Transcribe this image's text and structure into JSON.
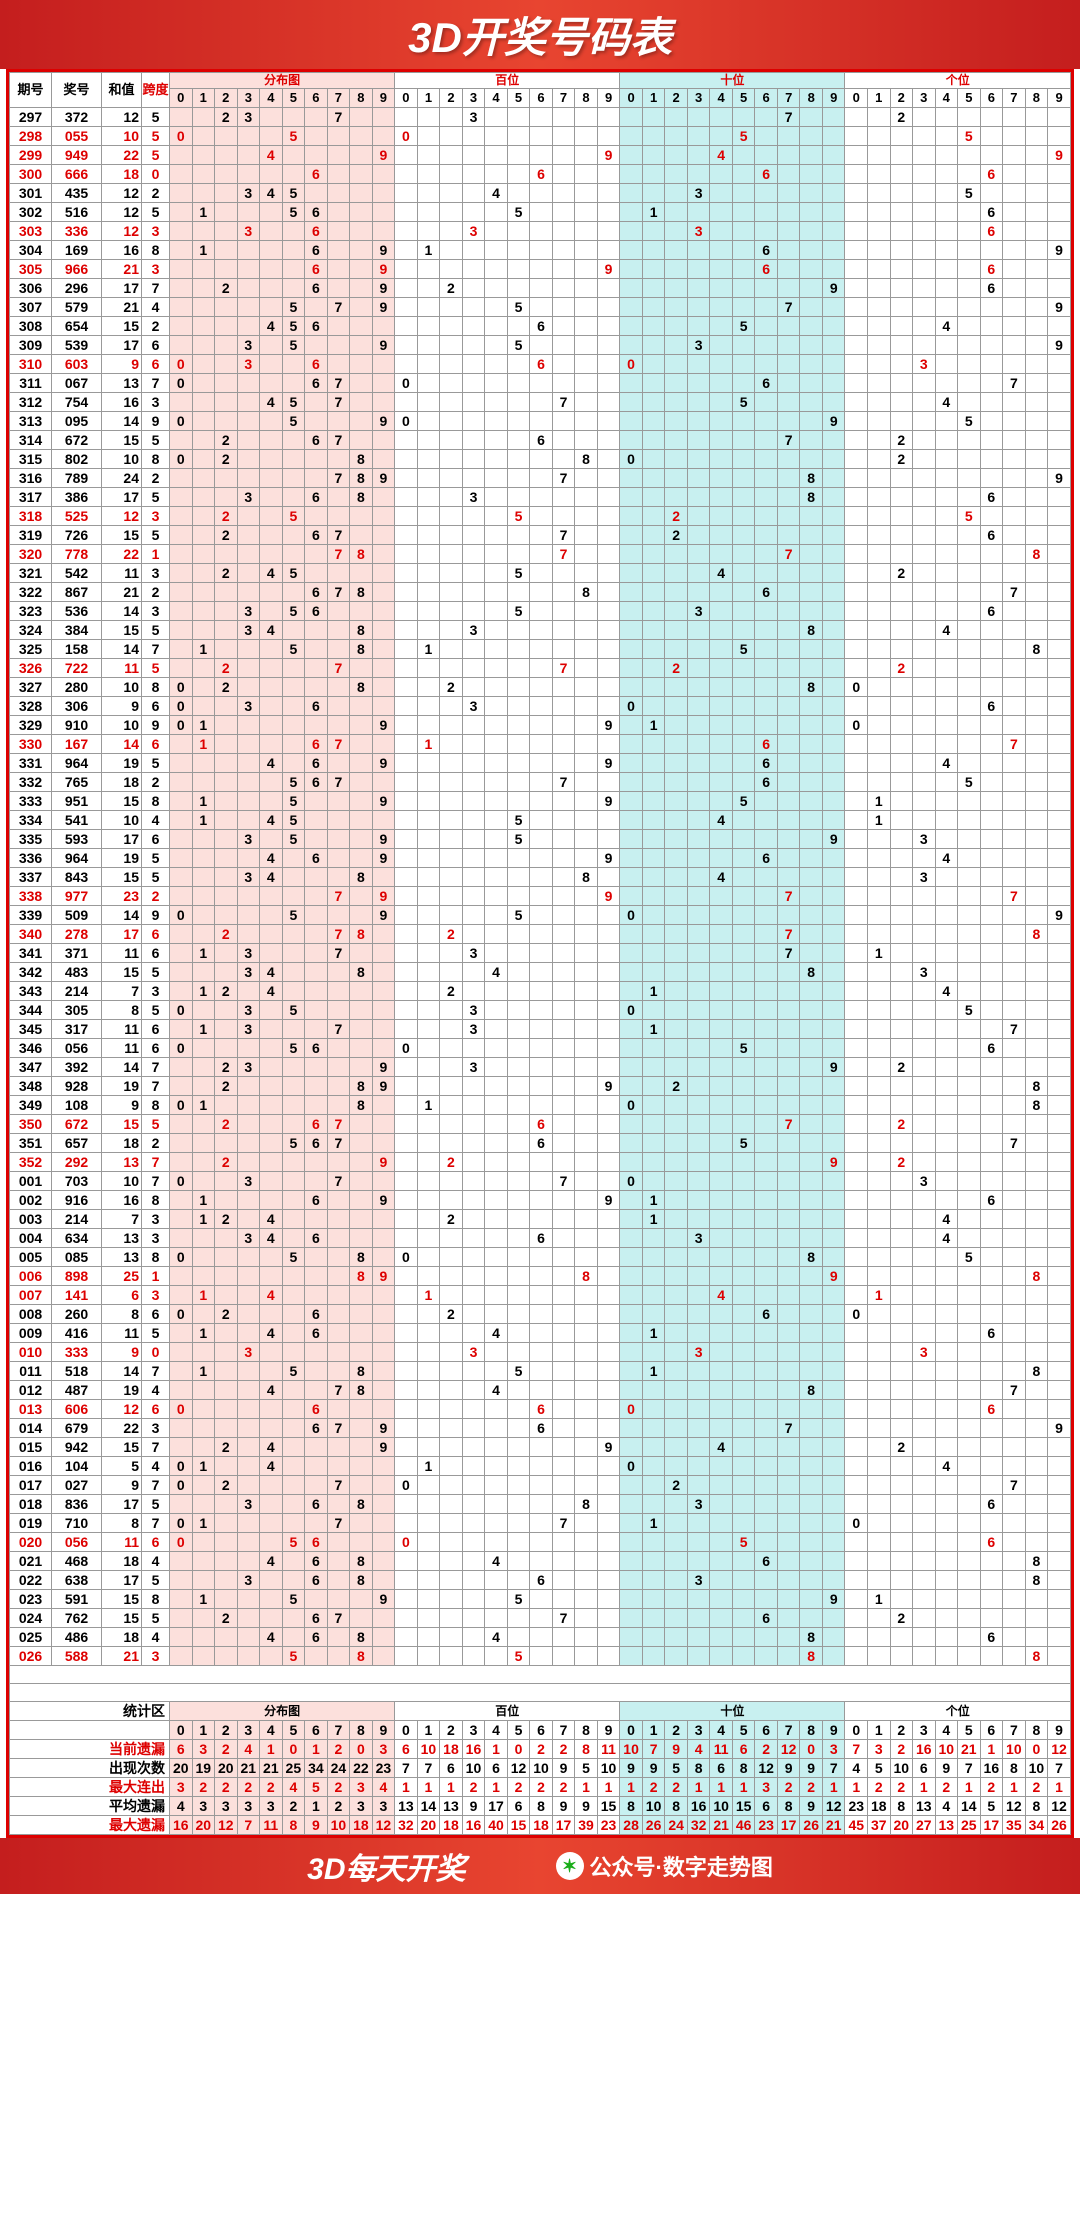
{
  "title": "3D开奖号码表",
  "footer_left": "3D每天开奖",
  "footer_right": "公众号·数字走势图",
  "headers": {
    "issue": "期号",
    "number": "奖号",
    "sum": "和值",
    "span": "跨度",
    "dist": "分布图",
    "bai": "百位",
    "shi": "十位",
    "ge": "个位",
    "digits": [
      "0",
      "1",
      "2",
      "3",
      "4",
      "5",
      "6",
      "7",
      "8",
      "9"
    ]
  },
  "bai_col_colors": [
    "#fff",
    "#fff",
    "#fff",
    "#fff",
    "#fff",
    "#fff",
    "#fff",
    "#fff",
    "#fff",
    "#fff"
  ],
  "shi_col_colors": [
    "#c8f0f0",
    "#c8f0f0",
    "#c8f0f0",
    "#c8f0f0",
    "#c8f0f0",
    "#c8f0f0",
    "#c8f0f0",
    "#c8f0f0",
    "#c8f0f0",
    "#c8f0f0"
  ],
  "ge_col_colors": [
    "#fff",
    "#fff",
    "#fff",
    "#fff",
    "#fff",
    "#fff",
    "#fff",
    "#fff",
    "#fff",
    "#fff"
  ],
  "dist_bg": "#fce0dc",
  "line_colors": {
    "bai": "#d00",
    "shi": "#0066dd",
    "ge": "#d00"
  },
  "rows": [
    {
      "i": "297",
      "n": "372",
      "s": 12,
      "p": 5,
      "d": [
        3,
        7,
        2
      ]
    },
    {
      "i": "298",
      "n": "055",
      "s": 10,
      "p": 5,
      "d": [
        0,
        5,
        5
      ],
      "red": true
    },
    {
      "i": "299",
      "n": "949",
      "s": 22,
      "p": 5,
      "d": [
        9,
        4,
        9
      ],
      "red": true
    },
    {
      "i": "300",
      "n": "666",
      "s": 18,
      "p": 0,
      "d": [
        6,
        6,
        6
      ],
      "red": true,
      "blue": true
    },
    {
      "i": "301",
      "n": "435",
      "s": 12,
      "p": 2,
      "d": [
        4,
        3,
        5
      ]
    },
    {
      "i": "302",
      "n": "516",
      "s": 12,
      "p": 5,
      "d": [
        5,
        1,
        6
      ]
    },
    {
      "i": "303",
      "n": "336",
      "s": 12,
      "p": 3,
      "d": [
        3,
        3,
        6
      ],
      "red": true
    },
    {
      "i": "304",
      "n": "169",
      "s": 16,
      "p": 8,
      "d": [
        1,
        6,
        9
      ]
    },
    {
      "i": "305",
      "n": "966",
      "s": 21,
      "p": 3,
      "d": [
        9,
        6,
        6
      ],
      "red": true
    },
    {
      "i": "306",
      "n": "296",
      "s": 17,
      "p": 7,
      "d": [
        2,
        9,
        6
      ]
    },
    {
      "i": "307",
      "n": "579",
      "s": 21,
      "p": 4,
      "d": [
        5,
        7,
        9
      ]
    },
    {
      "i": "308",
      "n": "654",
      "s": 15,
      "p": 2,
      "d": [
        6,
        5,
        4
      ]
    },
    {
      "i": "309",
      "n": "539",
      "s": 17,
      "p": 6,
      "d": [
        5,
        3,
        9
      ]
    },
    {
      "i": "310",
      "n": "603",
      "s": 9,
      "p": 6,
      "d": [
        6,
        0,
        3
      ],
      "red": true
    },
    {
      "i": "311",
      "n": "067",
      "s": 13,
      "p": 7,
      "d": [
        0,
        6,
        7
      ]
    },
    {
      "i": "312",
      "n": "754",
      "s": 16,
      "p": 3,
      "d": [
        7,
        5,
        4
      ]
    },
    {
      "i": "313",
      "n": "095",
      "s": 14,
      "p": 9,
      "d": [
        0,
        9,
        5
      ]
    },
    {
      "i": "314",
      "n": "672",
      "s": 15,
      "p": 5,
      "d": [
        6,
        7,
        2
      ]
    },
    {
      "i": "315",
      "n": "802",
      "s": 10,
      "p": 8,
      "d": [
        8,
        0,
        2
      ]
    },
    {
      "i": "316",
      "n": "789",
      "s": 24,
      "p": 2,
      "d": [
        7,
        8,
        9
      ]
    },
    {
      "i": "317",
      "n": "386",
      "s": 17,
      "p": 5,
      "d": [
        3,
        8,
        6
      ]
    },
    {
      "i": "318",
      "n": "525",
      "s": 12,
      "p": 3,
      "d": [
        5,
        2,
        5
      ],
      "red": true
    },
    {
      "i": "319",
      "n": "726",
      "s": 15,
      "p": 5,
      "d": [
        7,
        2,
        6
      ]
    },
    {
      "i": "320",
      "n": "778",
      "s": 22,
      "p": 1,
      "d": [
        7,
        7,
        8
      ],
      "red": true
    },
    {
      "i": "321",
      "n": "542",
      "s": 11,
      "p": 3,
      "d": [
        5,
        4,
        2
      ]
    },
    {
      "i": "322",
      "n": "867",
      "s": 21,
      "p": 2,
      "d": [
        8,
        6,
        7
      ]
    },
    {
      "i": "323",
      "n": "536",
      "s": 14,
      "p": 3,
      "d": [
        5,
        3,
        6
      ]
    },
    {
      "i": "324",
      "n": "384",
      "s": 15,
      "p": 5,
      "d": [
        3,
        8,
        4
      ]
    },
    {
      "i": "325",
      "n": "158",
      "s": 14,
      "p": 7,
      "d": [
        1,
        5,
        8
      ]
    },
    {
      "i": "326",
      "n": "722",
      "s": 11,
      "p": 5,
      "d": [
        7,
        2,
        2
      ],
      "red": true
    },
    {
      "i": "327",
      "n": "280",
      "s": 10,
      "p": 8,
      "d": [
        2,
        8,
        0
      ]
    },
    {
      "i": "328",
      "n": "306",
      "s": 9,
      "p": 6,
      "d": [
        3,
        0,
        6
      ]
    },
    {
      "i": "329",
      "n": "910",
      "s": 10,
      "p": 9,
      "d": [
        9,
        1,
        0
      ]
    },
    {
      "i": "330",
      "n": "167",
      "s": 14,
      "p": 6,
      "d": [
        1,
        6,
        7
      ],
      "red": true
    },
    {
      "i": "331",
      "n": "964",
      "s": 19,
      "p": 5,
      "d": [
        9,
        6,
        4
      ]
    },
    {
      "i": "332",
      "n": "765",
      "s": 18,
      "p": 2,
      "d": [
        7,
        6,
        5
      ]
    },
    {
      "i": "333",
      "n": "951",
      "s": 15,
      "p": 8,
      "d": [
        9,
        5,
        1
      ]
    },
    {
      "i": "334",
      "n": "541",
      "s": 10,
      "p": 4,
      "d": [
        5,
        4,
        1
      ]
    },
    {
      "i": "335",
      "n": "593",
      "s": 17,
      "p": 6,
      "d": [
        5,
        9,
        3
      ]
    },
    {
      "i": "336",
      "n": "964",
      "s": 19,
      "p": 5,
      "d": [
        9,
        6,
        4
      ]
    },
    {
      "i": "337",
      "n": "843",
      "s": 15,
      "p": 5,
      "d": [
        8,
        4,
        3
      ]
    },
    {
      "i": "338",
      "n": "977",
      "s": 23,
      "p": 2,
      "d": [
        9,
        7,
        7
      ],
      "red": true
    },
    {
      "i": "339",
      "n": "509",
      "s": 14,
      "p": 9,
      "d": [
        5,
        0,
        9
      ]
    },
    {
      "i": "340",
      "n": "278",
      "s": 17,
      "p": 6,
      "d": [
        2,
        7,
        8
      ],
      "red": true
    },
    {
      "i": "341",
      "n": "371",
      "s": 11,
      "p": 6,
      "d": [
        3,
        7,
        1
      ]
    },
    {
      "i": "342",
      "n": "483",
      "s": 15,
      "p": 5,
      "d": [
        4,
        8,
        3
      ]
    },
    {
      "i": "343",
      "n": "214",
      "s": 7,
      "p": 3,
      "d": [
        2,
        1,
        4
      ]
    },
    {
      "i": "344",
      "n": "305",
      "s": 8,
      "p": 5,
      "d": [
        3,
        0,
        5
      ]
    },
    {
      "i": "345",
      "n": "317",
      "s": 11,
      "p": 6,
      "d": [
        3,
        1,
        7
      ]
    },
    {
      "i": "346",
      "n": "056",
      "s": 11,
      "p": 6,
      "d": [
        0,
        5,
        6
      ]
    },
    {
      "i": "347",
      "n": "392",
      "s": 14,
      "p": 7,
      "d": [
        3,
        9,
        2
      ]
    },
    {
      "i": "348",
      "n": "928",
      "s": 19,
      "p": 7,
      "d": [
        9,
        2,
        8
      ]
    },
    {
      "i": "349",
      "n": "108",
      "s": 9,
      "p": 8,
      "d": [
        1,
        0,
        8
      ]
    },
    {
      "i": "350",
      "n": "672",
      "s": 15,
      "p": 5,
      "d": [
        6,
        7,
        2
      ],
      "red": true
    },
    {
      "i": "351",
      "n": "657",
      "s": 18,
      "p": 2,
      "d": [
        6,
        5,
        7
      ]
    },
    {
      "i": "352",
      "n": "292",
      "s": 13,
      "p": 7,
      "d": [
        2,
        9,
        2
      ],
      "red": true
    },
    {
      "i": "001",
      "n": "703",
      "s": 10,
      "p": 7,
      "d": [
        7,
        0,
        3
      ]
    },
    {
      "i": "002",
      "n": "916",
      "s": 16,
      "p": 8,
      "d": [
        9,
        1,
        6
      ]
    },
    {
      "i": "003",
      "n": "214",
      "s": 7,
      "p": 3,
      "d": [
        2,
        1,
        4
      ]
    },
    {
      "i": "004",
      "n": "634",
      "s": 13,
      "p": 3,
      "d": [
        6,
        3,
        4
      ]
    },
    {
      "i": "005",
      "n": "085",
      "s": 13,
      "p": 8,
      "d": [
        0,
        8,
        5
      ]
    },
    {
      "i": "006",
      "n": "898",
      "s": 25,
      "p": 1,
      "d": [
        8,
        9,
        8
      ],
      "red": true
    },
    {
      "i": "007",
      "n": "141",
      "s": 6,
      "p": 3,
      "d": [
        1,
        4,
        1
      ],
      "red": true
    },
    {
      "i": "008",
      "n": "260",
      "s": 8,
      "p": 6,
      "d": [
        2,
        6,
        0
      ]
    },
    {
      "i": "009",
      "n": "416",
      "s": 11,
      "p": 5,
      "d": [
        4,
        1,
        6
      ]
    },
    {
      "i": "010",
      "n": "333",
      "s": 9,
      "p": 0,
      "d": [
        3,
        3,
        3
      ],
      "red": true,
      "blue": true
    },
    {
      "i": "011",
      "n": "518",
      "s": 14,
      "p": 7,
      "d": [
        5,
        1,
        8
      ]
    },
    {
      "i": "012",
      "n": "487",
      "s": 19,
      "p": 4,
      "d": [
        4,
        8,
        7
      ]
    },
    {
      "i": "013",
      "n": "606",
      "s": 12,
      "p": 6,
      "d": [
        6,
        0,
        6
      ],
      "red": true
    },
    {
      "i": "014",
      "n": "679",
      "s": 22,
      "p": 3,
      "d": [
        6,
        7,
        9
      ]
    },
    {
      "i": "015",
      "n": "942",
      "s": 15,
      "p": 7,
      "d": [
        9,
        4,
        2
      ]
    },
    {
      "i": "016",
      "n": "104",
      "s": 5,
      "p": 4,
      "d": [
        1,
        0,
        4
      ]
    },
    {
      "i": "017",
      "n": "027",
      "s": 9,
      "p": 7,
      "d": [
        0,
        2,
        7
      ]
    },
    {
      "i": "018",
      "n": "836",
      "s": 17,
      "p": 5,
      "d": [
        8,
        3,
        6
      ]
    },
    {
      "i": "019",
      "n": "710",
      "s": 8,
      "p": 7,
      "d": [
        7,
        1,
        0
      ]
    },
    {
      "i": "020",
      "n": "056",
      "s": 11,
      "p": 6,
      "d": [
        0,
        5,
        6
      ],
      "red": true
    },
    {
      "i": "021",
      "n": "468",
      "s": 18,
      "p": 4,
      "d": [
        4,
        6,
        8
      ]
    },
    {
      "i": "022",
      "n": "638",
      "s": 17,
      "p": 5,
      "d": [
        6,
        3,
        8
      ]
    },
    {
      "i": "023",
      "n": "591",
      "s": 15,
      "p": 8,
      "d": [
        5,
        9,
        1
      ]
    },
    {
      "i": "024",
      "n": "762",
      "s": 15,
      "p": 5,
      "d": [
        7,
        6,
        2
      ]
    },
    {
      "i": "025",
      "n": "486",
      "s": 18,
      "p": 4,
      "d": [
        4,
        8,
        6
      ]
    },
    {
      "i": "026",
      "n": "588",
      "s": 21,
      "p": 3,
      "d": [
        5,
        8,
        8
      ],
      "red": true
    }
  ],
  "empty_rows": 2,
  "stats_label": "统计区",
  "stats": [
    {
      "lbl": "当前遗漏",
      "cls": "red",
      "dist": [
        6,
        3,
        2,
        4,
        1,
        0,
        1,
        2,
        0,
        3
      ],
      "bai": [
        6,
        10,
        18,
        16,
        1,
        0,
        2,
        2,
        8,
        11
      ],
      "shi": [
        10,
        7,
        9,
        4,
        11,
        6,
        2,
        12,
        0,
        3
      ],
      "ge": [
        7,
        3,
        2,
        16,
        10,
        21,
        1,
        10,
        0,
        12
      ]
    },
    {
      "lbl": "出现次数",
      "cls": "",
      "dist": [
        20,
        19,
        20,
        21,
        21,
        25,
        34,
        24,
        22,
        23
      ],
      "bai": [
        7,
        7,
        6,
        10,
        6,
        12,
        10,
        9,
        5,
        10
      ],
      "shi": [
        9,
        9,
        5,
        8,
        6,
        8,
        12,
        9,
        9,
        7
      ],
      "ge": [
        4,
        5,
        10,
        6,
        9,
        7,
        16,
        8,
        10,
        7
      ]
    },
    {
      "lbl": "最大连出",
      "cls": "red",
      "dist": [
        3,
        2,
        2,
        2,
        2,
        4,
        5,
        2,
        3,
        4
      ],
      "bai": [
        1,
        1,
        1,
        2,
        1,
        2,
        2,
        2,
        1,
        1
      ],
      "shi": [
        1,
        2,
        2,
        1,
        1,
        1,
        3,
        2,
        2,
        1
      ],
      "ge": [
        1,
        2,
        2,
        1,
        2,
        1,
        2,
        1,
        2,
        1
      ]
    },
    {
      "lbl": "平均遗漏",
      "cls": "",
      "dist": [
        4,
        3,
        3,
        3,
        3,
        2,
        1,
        2,
        3,
        3
      ],
      "bai": [
        13,
        14,
        13,
        9,
        17,
        6,
        8,
        9,
        9,
        15
      ],
      "shi": [
        8,
        10,
        8,
        16,
        10,
        15,
        6,
        8,
        9,
        12
      ],
      "ge": [
        23,
        18,
        8,
        13,
        4,
        14,
        5,
        12,
        8,
        12
      ]
    },
    {
      "lbl": "最大遗漏",
      "cls": "red",
      "dist": [
        16,
        20,
        12,
        7,
        11,
        8,
        9,
        10,
        18,
        12
      ],
      "bai": [
        32,
        20,
        18,
        16,
        40,
        15,
        18,
        17,
        39,
        23
      ],
      "shi": [
        28,
        26,
        24,
        32,
        21,
        46,
        23,
        17,
        26,
        21
      ],
      "ge": [
        45,
        37,
        20,
        27,
        13,
        25,
        17,
        35,
        34,
        26
      ]
    }
  ]
}
